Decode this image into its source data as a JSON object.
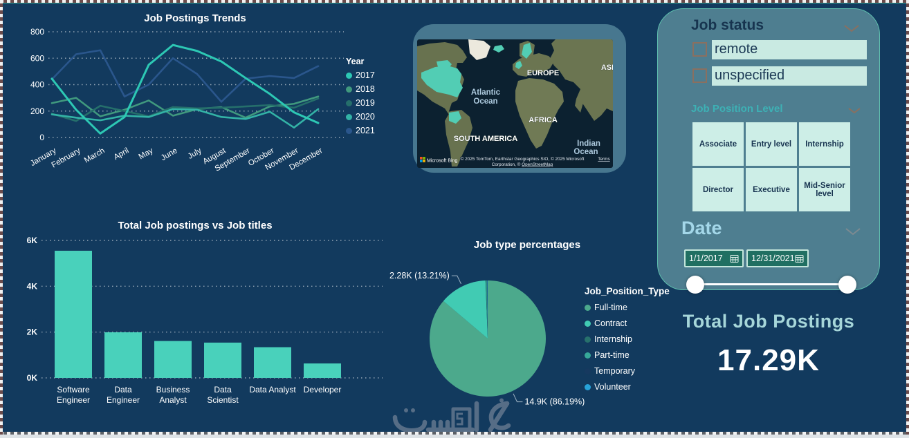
{
  "canvas": {
    "bg": "#123a5e"
  },
  "chart_data": [
    {
      "type": "line",
      "title": "Job Postings Trends",
      "x_categories": [
        "January",
        "February",
        "March",
        "April",
        "May",
        "June",
        "July",
        "August",
        "September",
        "October",
        "November",
        "December"
      ],
      "ylim": [
        0,
        800
      ],
      "yticks": [
        0,
        200,
        400,
        600,
        800
      ],
      "grid": "dotted-horizontal",
      "legend_title": "Year",
      "legend_position": "right",
      "series": [
        {
          "name": "2017",
          "color": "#2dc8b4",
          "values": [
            445,
            210,
            30,
            155,
            550,
            700,
            655,
            575,
            450,
            330,
            190,
            110
          ]
        },
        {
          "name": "2018",
          "color": "#40997e",
          "values": [
            260,
            300,
            160,
            210,
            280,
            165,
            215,
            230,
            150,
            235,
            255,
            310
          ]
        },
        {
          "name": "2019",
          "color": "#256f6b",
          "values": [
            180,
            125,
            240,
            200,
            160,
            230,
            220,
            225,
            235,
            245,
            225,
            295
          ]
        },
        {
          "name": "2020",
          "color": "#33b3a6",
          "values": [
            175,
            150,
            130,
            165,
            155,
            215,
            210,
            155,
            140,
            195,
            75,
            215
          ]
        },
        {
          "name": "2021",
          "color": "#2a568c",
          "values": [
            440,
            630,
            660,
            310,
            400,
            600,
            480,
            270,
            445,
            465,
            450,
            540
          ]
        }
      ],
      "note": "series values estimated from gridlines"
    },
    {
      "type": "bar",
      "title": "Total Job postings vs Job titles",
      "categories": [
        "Software Engineer",
        "Data Engineer",
        "Business Analyst",
        "Data Scientist",
        "Data Analyst",
        "Developer"
      ],
      "categories_lines": [
        [
          "Software",
          "Engineer"
        ],
        [
          "Data",
          "Engineer"
        ],
        [
          "Business",
          "Analyst"
        ],
        [
          "Data",
          "Scientist"
        ],
        [
          "Data Analyst"
        ],
        [
          "Developer"
        ]
      ],
      "values": [
        5550,
        1990,
        1610,
        1540,
        1340,
        630
      ],
      "ylim": [
        0,
        6000
      ],
      "ytick_values": [
        0,
        2000,
        4000,
        6000
      ],
      "ytick_labels": [
        "0K",
        "2K",
        "4K",
        "6K"
      ],
      "bar_color": "#49d1bb"
    },
    {
      "type": "pie",
      "title": "Job type percentages",
      "legend_title": "Job_Position_Type",
      "slices": [
        {
          "name": "Full-time",
          "pct": 86.19,
          "label": "14.9K (86.19%)",
          "color": "#4ca98c"
        },
        {
          "name": "Contract",
          "pct": 13.21,
          "label": "2.28K (13.21%)",
          "color": "#41cbb3"
        },
        {
          "name": "Internship",
          "pct": 0.22,
          "color": "#27716c"
        },
        {
          "name": "Part-time",
          "pct": 0.17,
          "color": "#36a899"
        },
        {
          "name": "Temporary",
          "pct": 0.12,
          "color": "#16395f"
        },
        {
          "name": "Volunteer",
          "pct": 0.09,
          "color": "#27a3d9"
        }
      ]
    }
  ],
  "map": {
    "labels": {
      "europe": "EUROPE",
      "asia": "ASIA",
      "africa": "AFRICA",
      "south_america": "SOUTH AMERICA",
      "atlantic_1": "Atlantic",
      "atlantic_2": "Ocean",
      "indian_1": "Indian",
      "indian_2": "Ocean"
    },
    "attribution_line1": "© 2025 TomTom, Earthstar Geographics SIO, © 2025 Microsoft",
    "attribution_line2a": "Corporation, © ",
    "attribution_line2b": "OpenStreetMap",
    "terms": "Terms",
    "provider": "Microsoft Bing",
    "highlight_color": "#52cdb4"
  },
  "filters": {
    "job_status": {
      "title": "Job status",
      "options": [
        {
          "label": "remote",
          "checked": false
        },
        {
          "label": "unspecified",
          "checked": false
        }
      ]
    },
    "position_level": {
      "title": "Job Position Level",
      "buttons": [
        "Associate",
        "Entry level",
        "Internship",
        "Director",
        "Executive",
        "Mid-Senior level"
      ]
    },
    "date": {
      "title": "Date",
      "start": "1/1/2017",
      "end": "12/31/2021"
    }
  },
  "kpi": {
    "label": "Total Job Postings",
    "value": "17.29K"
  },
  "watermark": {
    "text": "خمسات"
  }
}
